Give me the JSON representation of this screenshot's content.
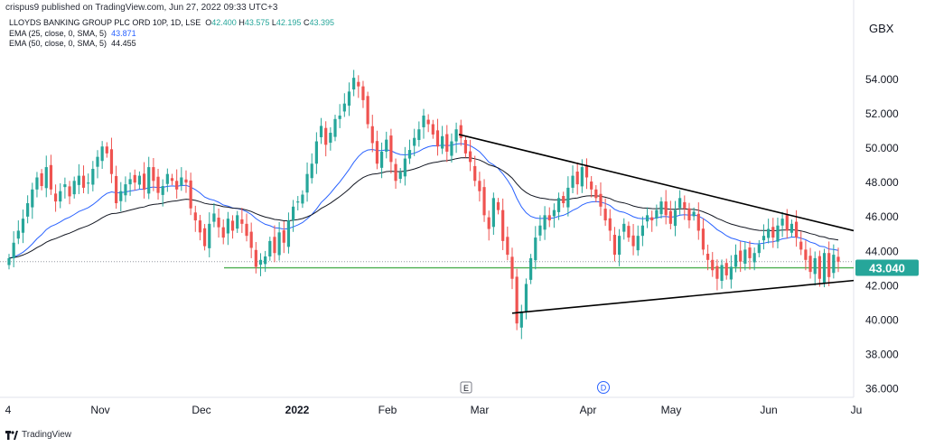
{
  "header": {
    "publisher": "crispus9 published on TradingView.com, Jun 27, 2022 09:33 UTC+3"
  },
  "legend": {
    "symbol": "LLOYDS BANKING GROUP PLC ORD 10P, 1D, LSE",
    "o_label": "O",
    "o_value": "42.400",
    "h_label": "H",
    "h_value": "43.575",
    "l_label": "L",
    "l_value": "42.195",
    "c_label": "C",
    "c_value": "43.395",
    "ema25_label": "EMA (25, close, 0, SMA, 5)",
    "ema25_value": "43.871",
    "ema50_label": "EMA (50, close, 0, SMA, 5)",
    "ema50_value": "44.455"
  },
  "unit": "GBX",
  "footer": {
    "brand": "TradingView"
  },
  "colors": {
    "up": "#26a69a",
    "down": "#ef5350",
    "ema25": "#2962ff",
    "ema50": "#131722",
    "support": "#4caf50",
    "price_label_bg": "#26a69a"
  },
  "chart_data": {
    "type": "candlestick",
    "ylim": [
      35.5,
      56.0
    ],
    "y_ticks": [
      "54.000",
      "52.000",
      "50.000",
      "48.000",
      "46.000",
      "44.000",
      "42.000",
      "40.000",
      "38.000",
      "36.000"
    ],
    "x_ticks": [
      "4",
      "Nov",
      "Dec",
      "2022",
      "Feb",
      "Mar",
      "Apr",
      "May",
      "Jun",
      "Ju"
    ],
    "last_price_label": "43.040",
    "support_level": 43.04,
    "current_price_line": 43.395,
    "event_markers": [
      "E",
      "D"
    ],
    "trendlines": [
      {
        "from_date": "2022-02-21",
        "from": 50.8,
        "to_date": "2022-06-29",
        "to": 45.2
      },
      {
        "from_date": "2022-03-09",
        "from": 40.4,
        "to_date": "2022-06-29",
        "to": 42.3
      }
    ],
    "closes": [
      43.6,
      44.5,
      45.2,
      45.9,
      46.8,
      47.6,
      48.3,
      47.8,
      48.9,
      47.6,
      46.9,
      47.5,
      47.9,
      47.2,
      48.1,
      48.4,
      47.7,
      48.0,
      48.8,
      49.5,
      50.1,
      49.7,
      48.5,
      46.8,
      47.5,
      47.9,
      48.2,
      48.0,
      48.4,
      47.6,
      48.9,
      48.1,
      47.4,
      47.8,
      48.5,
      48.1,
      47.6,
      48.3,
      48.0,
      46.5,
      45.8,
      45.1,
      44.3,
      45.6,
      46.2,
      45.4,
      44.8,
      45.9,
      45.2,
      46.1,
      45.6,
      44.9,
      44.2,
      43.1,
      43.5,
      43.7,
      44.6,
      43.9,
      45.1,
      44.5,
      45.8,
      46.6,
      46.9,
      47.3,
      48.5,
      49.1,
      50.4,
      51.3,
      50.2,
      50.9,
      51.7,
      51.9,
      52.6,
      53.3,
      54.1,
      53.6,
      52.8,
      51.4,
      50.3,
      49.1,
      49.8,
      50.5,
      49.2,
      48.1,
      48.6,
      49.4,
      49.9,
      50.6,
      51.1,
      51.9,
      51.4,
      50.8,
      50.1,
      50.7,
      49.8,
      50.4,
      51.1,
      50.6,
      49.7,
      49.2,
      48.1,
      47.5,
      46.1,
      45.3,
      47.1,
      46.4,
      44.6,
      43.8,
      42.4,
      39.8,
      40.5,
      42.1,
      43.6,
      44.8,
      45.5,
      46.1,
      45.8,
      46.4,
      47.1,
      46.8,
      47.7,
      48.4,
      47.9,
      48.9,
      48.3,
      47.6,
      47.1,
      46.6,
      45.8,
      45.2,
      43.8,
      44.9,
      45.6,
      44.8,
      44.3,
      44.9,
      45.5,
      46.1,
      45.8,
      46.4,
      46.9,
      46.1,
      45.6,
      46.4,
      47.1,
      46.5,
      45.8,
      46.3,
      45.2,
      44.1,
      43.5,
      42.9,
      42.4,
      43.2,
      42.6,
      43.1,
      43.8,
      43.4,
      44.1,
      43.6,
      43.9,
      44.4,
      44.9,
      45.3,
      44.8,
      45.5,
      45.9,
      45.2,
      45.6,
      44.8,
      44.1,
      43.5,
      42.8,
      43.6,
      42.4,
      43.9,
      42.5,
      43.8,
      43.395
    ]
  }
}
